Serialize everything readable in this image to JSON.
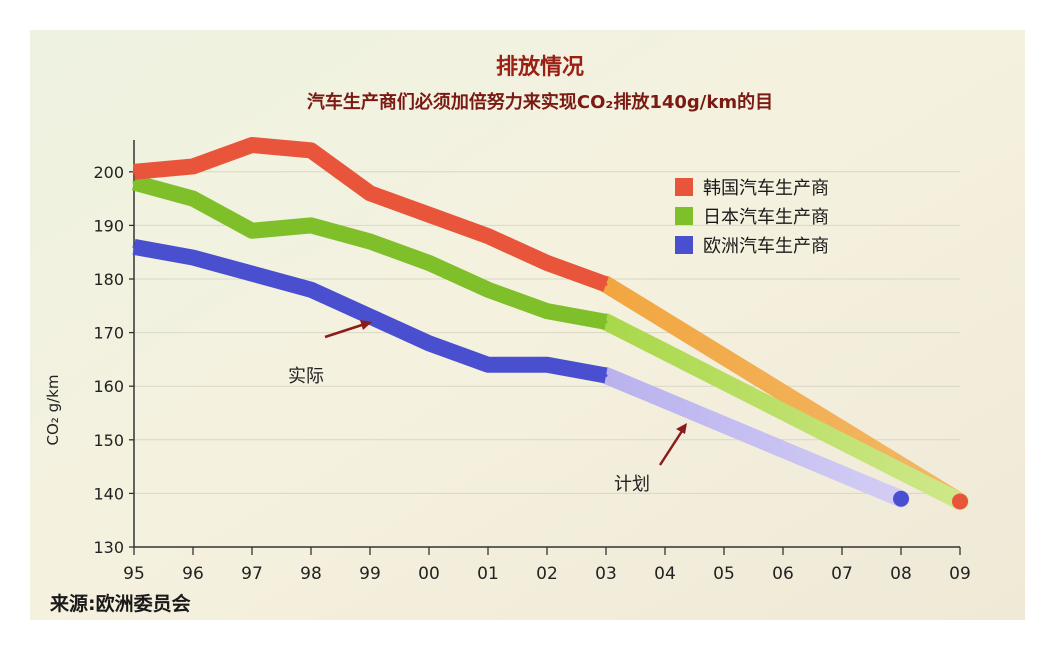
{
  "chart_data": {
    "type": "line",
    "title": "排放情况",
    "subtitle": "汽车生产商们必须加倍努力来实现CO₂排放140g/km的目",
    "ylabel": "CO₂ g/km",
    "xlabel": "",
    "ylim": [
      130,
      205
    ],
    "yticks": [
      130,
      140,
      150,
      160,
      170,
      180,
      190,
      200
    ],
    "x": [
      "95",
      "96",
      "97",
      "98",
      "99",
      "00",
      "01",
      "02",
      "03",
      "04",
      "05",
      "06",
      "07",
      "08",
      "09"
    ],
    "grid": true,
    "legend_position": "top-right",
    "series": [
      {
        "name": "韩国汽车生产商",
        "color": "#e8553a",
        "actual_values": [
          200,
          201,
          205,
          204,
          196,
          192,
          188,
          183,
          179
        ],
        "plan_from": "03",
        "plan_to": "09",
        "plan_target": 138.5
      },
      {
        "name": "日本汽车生产商",
        "color": "#7fbf2a",
        "actual_values": [
          198,
          195,
          189,
          190,
          187,
          183,
          178,
          174,
          172
        ],
        "plan_from": "03",
        "plan_to": "09",
        "plan_target": 138.5
      },
      {
        "name": "欧洲汽车生产商",
        "color": "#4a4fd0",
        "actual_values": [
          186,
          184,
          181,
          178,
          173,
          168,
          164,
          164,
          162
        ],
        "plan_from": "03",
        "plan_to": "08",
        "plan_target": 139
      }
    ],
    "annotations": [
      "实际",
      "计划"
    ]
  },
  "source": "来源:欧洲委员会"
}
